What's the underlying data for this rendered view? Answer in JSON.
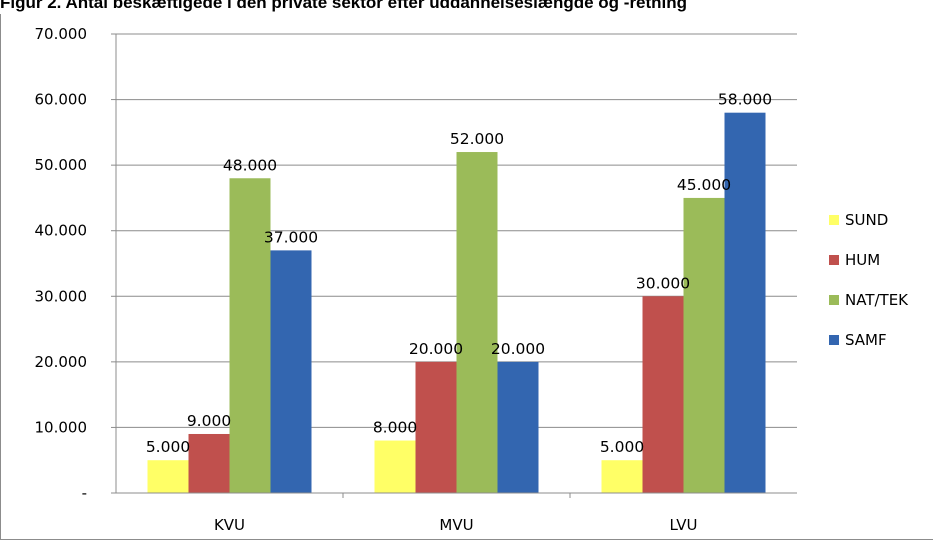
{
  "chart_data": {
    "type": "bar",
    "title": "Figur 2. Antal beskæftigede i den private sektor efter uddannelseslængde og -retning",
    "categories": [
      "KVU",
      "MVU",
      "LVU"
    ],
    "series": [
      {
        "name": "SUND",
        "color": "#ffff66",
        "values": [
          5000,
          8000,
          5000
        ],
        "labels": [
          "5.000",
          "8.000",
          "5.000"
        ]
      },
      {
        "name": "HUM",
        "color": "#c0504d",
        "values": [
          9000,
          20000,
          30000
        ],
        "labels": [
          "9.000",
          "20.000",
          "30.000"
        ]
      },
      {
        "name": "NAT/TEK",
        "color": "#9bbb59",
        "values": [
          48000,
          52000,
          45000
        ],
        "labels": [
          "48.000",
          "52.000",
          "45.000"
        ]
      },
      {
        "name": "SAMF",
        "color": "#3366b0",
        "values": [
          37000,
          20000,
          58000
        ],
        "labels": [
          "37.000",
          "20.000",
          "58.000"
        ]
      }
    ],
    "ylim": [
      0,
      70000
    ],
    "yticks": [
      0,
      10000,
      20000,
      30000,
      40000,
      50000,
      60000,
      70000
    ],
    "ytick_labels": [
      "-",
      "10.000",
      "20.000",
      "30.000",
      "40.000",
      "50.000",
      "60.000",
      "70.000"
    ],
    "grid": true,
    "legend": "right",
    "xlabel": "",
    "ylabel": ""
  }
}
